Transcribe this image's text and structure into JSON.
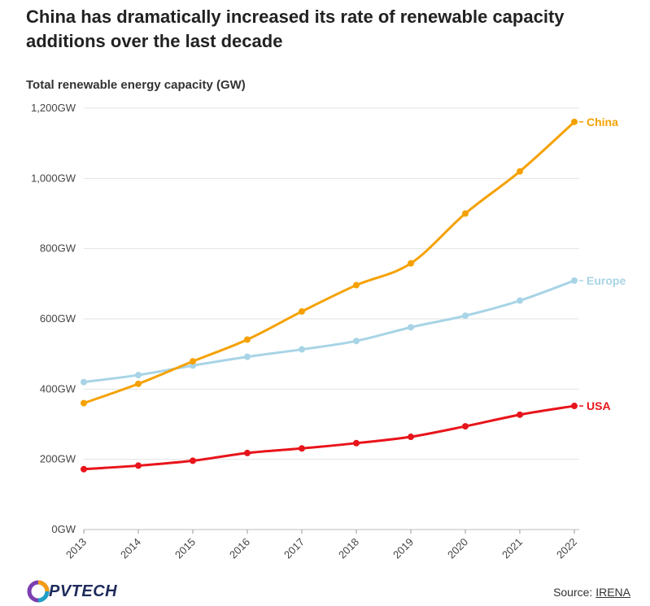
{
  "title": "China has dramatically increased its rate of renewable capacity additions over the last decade",
  "subtitle": "Total renewable energy capacity (GW)",
  "source_prefix": "Source:",
  "source_name": "IRENA",
  "logo_text": "PVTECH",
  "logo_letter": "O",
  "chart_data": {
    "type": "line",
    "title": "China has dramatically increased its rate of renewable capacity additions over the last decade",
    "ylabel": "Total renewable energy capacity (GW)",
    "xlabel": "",
    "ylim": [
      0,
      1200
    ],
    "yticks": [
      0,
      200,
      400,
      600,
      800,
      1000,
      1200
    ],
    "ytick_labels": [
      "0GW",
      "200GW",
      "400GW",
      "600GW",
      "800GW",
      "1,000GW",
      "1,200GW"
    ],
    "categories": [
      "2013",
      "2014",
      "2015",
      "2016",
      "2017",
      "2018",
      "2019",
      "2020",
      "2021",
      "2022"
    ],
    "grid": true,
    "series": [
      {
        "name": "China",
        "color": "#f5a100",
        "values": [
          360,
          415,
          479,
          541,
          621,
          696,
          758,
          900,
          1020,
          1161
        ]
      },
      {
        "name": "Europe",
        "color": "#a8d4e6",
        "values": [
          420,
          440,
          467,
          492,
          513,
          537,
          576,
          609,
          652,
          709
        ]
      },
      {
        "name": "USA",
        "color": "#e8141b",
        "values": [
          172,
          182,
          196,
          218,
          231,
          246,
          264,
          294,
          327,
          352
        ]
      }
    ]
  }
}
